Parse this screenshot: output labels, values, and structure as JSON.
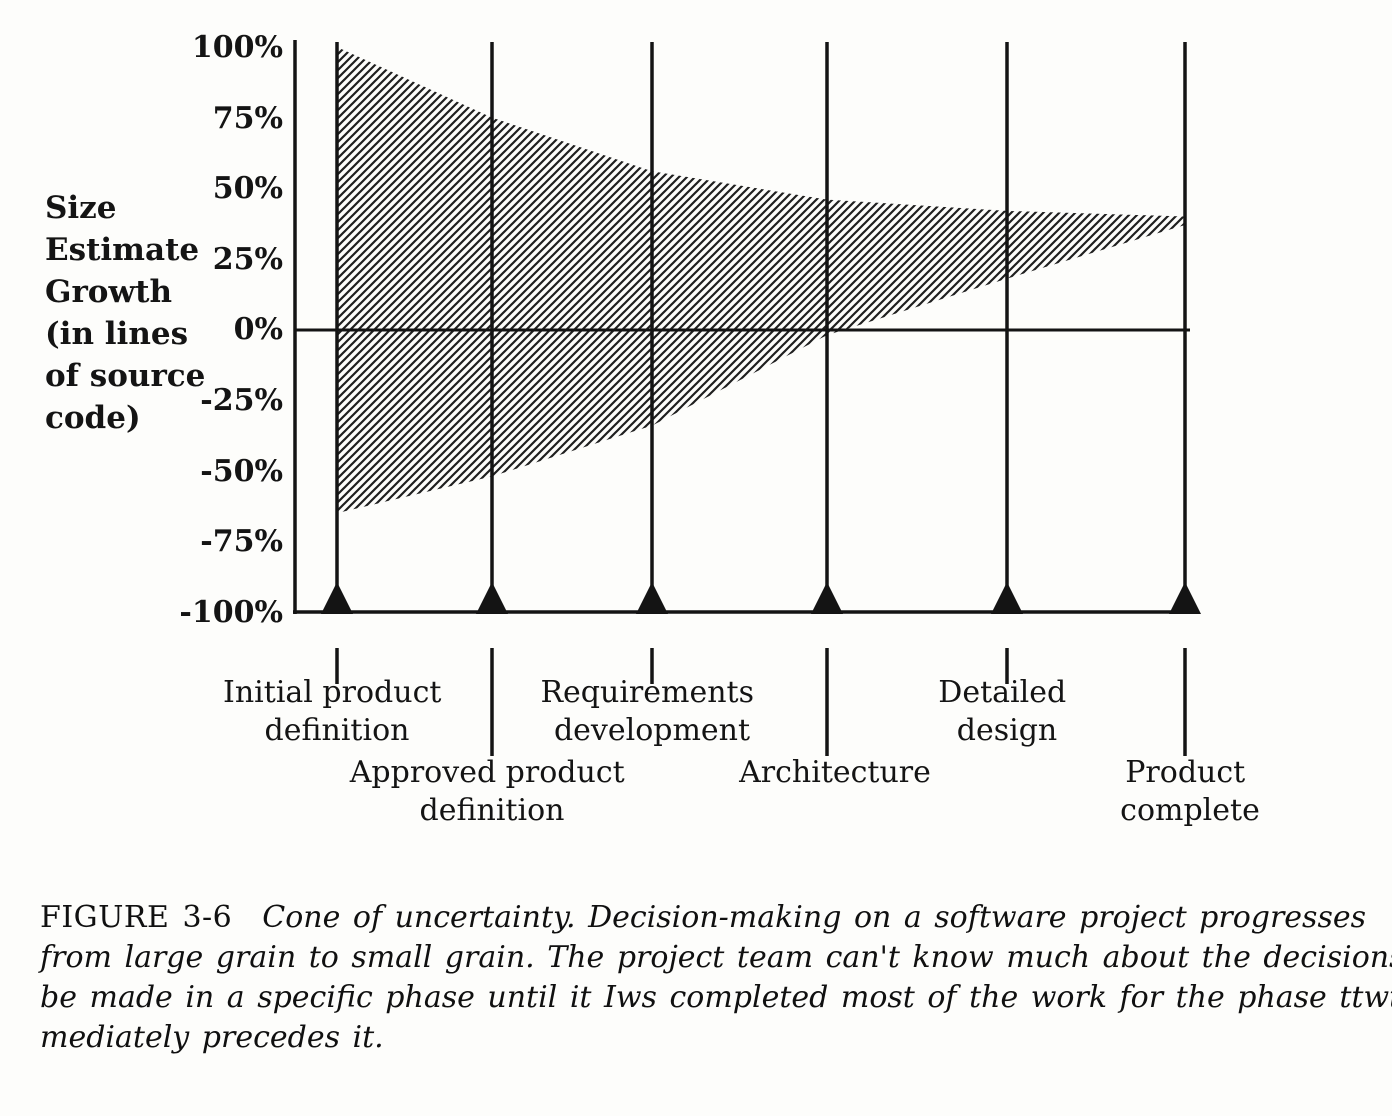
{
  "figure": {
    "caption_label": "FIGURE 3-6",
    "caption_lines": [
      "Cone of uncertainty. Decision-making on a software project progresses",
      "from large grain to small grain. The project team can't know much about the decisions to",
      "be made in a specific phase until it Iws completed most of the work for the phase ttwt im-",
      "mediately precedes it."
    ]
  },
  "chart_data": {
    "type": "area",
    "title": "Cone of uncertainty",
    "ylabel": "Size Estimate Growth (in lines of source code)",
    "ylabel_lines": [
      "Size",
      "Estimate",
      "Growth",
      "(in lines",
      "of source",
      "code)"
    ],
    "y_tick_labels": [
      "100%",
      "75%",
      "50%",
      "25%",
      "0%",
      "-25%",
      "-50%",
      "-75%",
      "-100%"
    ],
    "ylim": [
      -100,
      100
    ],
    "grid": false,
    "legend": false,
    "categories": [
      "Initial product definition",
      "Approved product definition",
      "Requirements development",
      "Architecture",
      "Detailed design",
      "Product complete"
    ],
    "milestone_label_lines": [
      [
        "Initial product",
        "definition"
      ],
      [
        "Approved product",
        "definition"
      ],
      [
        "Requirements",
        "development"
      ],
      [
        "Architecture"
      ],
      [
        "Detailed",
        "design"
      ],
      [
        "Product",
        "complete"
      ]
    ],
    "series": [
      {
        "name": "upper estimate bound (%)",
        "values": [
          100,
          75,
          56,
          46,
          42,
          40
        ]
      },
      {
        "name": "lower estimate bound (%)",
        "values": [
          -65,
          -52,
          -34,
          -2,
          18,
          37
        ]
      }
    ]
  }
}
